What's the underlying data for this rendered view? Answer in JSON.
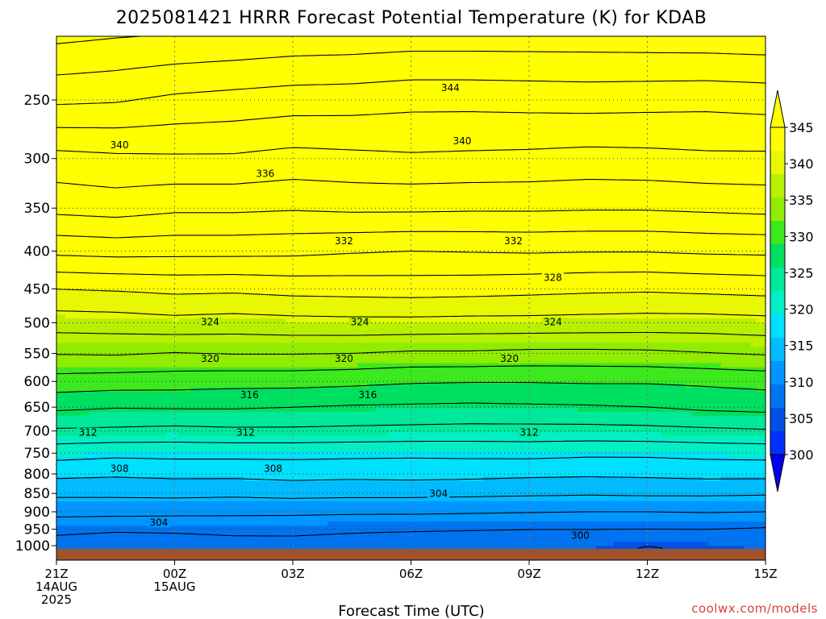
{
  "title": "2025081421 HRRR Forecast Potential Temperature (K) for KDAB",
  "credit": "coolwx.com/models",
  "chart_data": {
    "type": "heatmap",
    "title": "2025081421 HRRR Forecast Potential Temperature (K) for KDAB",
    "xlabel": "Forecast Time (UTC)",
    "ylabel": "",
    "x_hours": [
      0,
      1.5,
      3,
      4.5,
      6,
      7.5,
      9,
      10.5,
      12,
      13.5,
      15,
      16.5,
      18
    ],
    "x_ticks": [
      {
        "hour": 0,
        "lines": [
          "21Z",
          "14AUG",
          "2025"
        ]
      },
      {
        "hour": 3,
        "lines": [
          "00Z",
          "15AUG"
        ]
      },
      {
        "hour": 6,
        "lines": [
          "03Z"
        ]
      },
      {
        "hour": 9,
        "lines": [
          "06Z"
        ]
      },
      {
        "hour": 12,
        "lines": [
          "09Z"
        ]
      },
      {
        "hour": 15,
        "lines": [
          "12Z"
        ]
      },
      {
        "hour": 18,
        "lines": [
          "15Z"
        ]
      }
    ],
    "y_ticks": [
      250,
      300,
      350,
      400,
      450,
      500,
      550,
      600,
      650,
      700,
      750,
      800,
      850,
      900,
      950,
      1000
    ],
    "y_axis_scale": "log",
    "y_range_hPa": [
      200,
      1013
    ],
    "grid": "dotted at labeled ticks",
    "color_levels": [
      300,
      305,
      310,
      315,
      320,
      325,
      330,
      335,
      340,
      345
    ],
    "colors": [
      "#0030ff",
      "#0052e6",
      "#0074f0",
      "#0096ff",
      "#00bbff",
      "#00e0ff",
      "#00efc8",
      "#00e89a",
      "#00e060",
      "#3ce81e",
      "#90ec00",
      "#b8f000",
      "#e8f800",
      "#ffff00"
    ],
    "colorbar_ticks": [
      "345",
      "340",
      "335",
      "330",
      "325",
      "320",
      "315",
      "310",
      "305",
      "300"
    ],
    "ground_color": "#a0522d",
    "contour_interval": 2,
    "contour_labels": [
      "344",
      "340",
      "340",
      "336",
      "332",
      "332",
      "328",
      "324",
      "324",
      "324",
      "320",
      "320",
      "320",
      "316",
      "316",
      "312",
      "312",
      "312",
      "308",
      "308",
      "304",
      "304",
      "300"
    ],
    "profiles": [
      {
        "p": [
          1000,
          950,
          900,
          850,
          800,
          750,
          700,
          650,
          600,
          550,
          500,
          450,
          400,
          350,
          300,
          250,
          200
        ],
        "theta": [
          303.0,
          304.6,
          306.6,
          308.4,
          310.5,
          312.8,
          315.7,
          318.4,
          321.2,
          324.1,
          326.9,
          330.0,
          334.5,
          338.6,
          341.3,
          346.4,
          351.0
        ]
      },
      {
        "p": [
          1000,
          950,
          900,
          850,
          800,
          750,
          700,
          650,
          600,
          550,
          500,
          450,
          400,
          350,
          300,
          250,
          200
        ],
        "theta": [
          302.7,
          304.3,
          306.6,
          308.4,
          310.3,
          312.5,
          315.6,
          318.1,
          321.0,
          324.2,
          327.0,
          330.2,
          334.7,
          338.9,
          341.6,
          346.2,
          350.6
        ]
      },
      {
        "p": [
          1000,
          950,
          900,
          850,
          800,
          750,
          700,
          650,
          600,
          550,
          500,
          450,
          400,
          350,
          300,
          250,
          200
        ],
        "theta": [
          302.8,
          304.4,
          306.5,
          308.5,
          310.5,
          312.6,
          315.4,
          318.2,
          320.9,
          323.9,
          327.3,
          330.5,
          334.6,
          338.4,
          341.7,
          345.6,
          350.4
        ]
      },
      {
        "p": [
          1000,
          950,
          900,
          850,
          800,
          750,
          700,
          650,
          600,
          550,
          500,
          450,
          400,
          350,
          300,
          250,
          200
        ],
        "theta": [
          303.1,
          304.6,
          306.4,
          308.4,
          310.5,
          312.6,
          315.6,
          318.2,
          320.7,
          324.1,
          327.1,
          330.4,
          334.6,
          338.4,
          341.7,
          345.3,
          350.2
        ]
      },
      {
        "p": [
          1000,
          950,
          900,
          850,
          800,
          750,
          700,
          650,
          600,
          550,
          500,
          450,
          400,
          350,
          300,
          250,
          200
        ],
        "theta": [
          303.3,
          304.5,
          306.4,
          308.6,
          310.7,
          312.6,
          315.6,
          318.0,
          320.7,
          324.1,
          327.3,
          330.7,
          334.5,
          338.2,
          341.3,
          345.0,
          349.9
        ]
      },
      {
        "p": [
          1000,
          950,
          900,
          850,
          800,
          750,
          700,
          650,
          600,
          550,
          500,
          450,
          400,
          350,
          300,
          250,
          200
        ],
        "theta": [
          303.1,
          304.3,
          306.3,
          308.5,
          310.6,
          312.5,
          315.5,
          317.8,
          320.5,
          324.0,
          327.4,
          330.8,
          334.2,
          338.4,
          341.5,
          344.9,
          349.8
        ]
      },
      {
        "p": [
          1000,
          950,
          900,
          850,
          800,
          750,
          700,
          650,
          600,
          550,
          500,
          450,
          400,
          350,
          300,
          250,
          200
        ],
        "theta": [
          302.9,
          304.2,
          306.3,
          308.5,
          310.7,
          312.4,
          315.4,
          317.7,
          320.2,
          323.7,
          327.4,
          330.9,
          334.0,
          338.4,
          341.7,
          344.6,
          349.6
        ]
      },
      {
        "p": [
          1000,
          950,
          900,
          850,
          800,
          750,
          700,
          650,
          600,
          550,
          500,
          450,
          400,
          350,
          300,
          250,
          200
        ],
        "theta": [
          302.8,
          304.1,
          306.2,
          308.4,
          310.6,
          312.5,
          315.3,
          317.6,
          320.1,
          323.7,
          327.3,
          330.8,
          334.1,
          338.3,
          341.6,
          344.6,
          349.6
        ]
      },
      {
        "p": [
          1000,
          950,
          900,
          850,
          800,
          750,
          700,
          650,
          600,
          550,
          500,
          450,
          400,
          350,
          300,
          250,
          200
        ],
        "theta": [
          302.7,
          304.0,
          306.1,
          308.3,
          310.4,
          312.6,
          315.3,
          317.7,
          320.1,
          323.5,
          327.3,
          330.6,
          334.2,
          338.3,
          341.5,
          344.7,
          349.6
        ]
      },
      {
        "p": [
          1000,
          950,
          900,
          850,
          800,
          750,
          700,
          650,
          600,
          550,
          500,
          450,
          400,
          350,
          300,
          250,
          200
        ],
        "theta": [
          302.6,
          304.0,
          306.0,
          308.2,
          310.3,
          312.4,
          315.3,
          317.8,
          320.2,
          323.5,
          327.2,
          330.4,
          334.1,
          338.2,
          341.3,
          344.8,
          349.6
        ]
      },
      {
        "p": [
          1000,
          950,
          900,
          850,
          800,
          750,
          700,
          650,
          600,
          550,
          500,
          450,
          400,
          350,
          300,
          250,
          200
        ],
        "theta": [
          301.9,
          304.0,
          306.0,
          308.3,
          310.4,
          312.4,
          315.4,
          318.0,
          320.2,
          323.6,
          327.1,
          330.3,
          334.1,
          338.2,
          341.4,
          344.7,
          349.7
        ]
      },
      {
        "p": [
          1000,
          950,
          900,
          850,
          800,
          750,
          700,
          650,
          600,
          550,
          500,
          450,
          400,
          350,
          300,
          250,
          200
        ],
        "theta": [
          302.3,
          304.0,
          306.1,
          308.3,
          310.6,
          312.6,
          315.6,
          318.4,
          320.4,
          323.9,
          327.1,
          330.5,
          334.3,
          338.4,
          341.6,
          344.6,
          349.8
        ]
      },
      {
        "p": [
          1000,
          950,
          900,
          850,
          800,
          750,
          700,
          650,
          600,
          550,
          500,
          450,
          400,
          350,
          300,
          250,
          200
        ],
        "theta": [
          302.6,
          303.8,
          306.0,
          308.2,
          310.6,
          312.7,
          315.8,
          318.6,
          320.7,
          324.2,
          327.3,
          330.7,
          334.4,
          338.6,
          341.6,
          344.8,
          349.9
        ]
      }
    ]
  }
}
